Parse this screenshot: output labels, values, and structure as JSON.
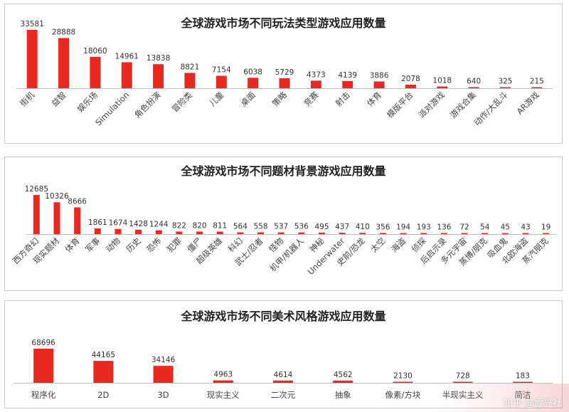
{
  "watermark": "知乎 @霞光社",
  "chart_data": [
    {
      "type": "bar",
      "title": "全球游戏市场不同玩法类型游戏应用数量",
      "categories": [
        "街机",
        "益智",
        "娱乐场",
        "Simulation",
        "角色扮演",
        "冒险类",
        "儿童",
        "桌面",
        "策略",
        "竞赛",
        "射击",
        "体育",
        "模版平台",
        "派对游戏",
        "游戏合集",
        "动作/大乱斗",
        "AR游戏"
      ],
      "values": [
        33581,
        28888,
        18060,
        14961,
        13838,
        8821,
        7154,
        6038,
        5729,
        4373,
        4139,
        3886,
        2078,
        1018,
        640,
        325,
        215
      ],
      "color": "#e8291f",
      "ylim": [
        0,
        33581
      ]
    },
    {
      "type": "bar",
      "title": "全球游戏市场不同题材背景游戏应用数量",
      "categories": [
        "西方奇幻",
        "现实题材",
        "体育",
        "军事",
        "动物",
        "历史",
        "恐怖",
        "犯罪",
        "僵尸",
        "超级英雄",
        "科幻",
        "武士/忍者",
        "怪物",
        "机甲/机器人",
        "神秘",
        "Underwater",
        "史前/恐龙",
        "太空",
        "海盗",
        "侦探",
        "后启示录",
        "多元宇宙",
        "蒸博/朋克",
        "吸血鬼",
        "北欧海盗",
        "蒸汽朋克"
      ],
      "values": [
        12685,
        10326,
        8666,
        1861,
        1674,
        1428,
        1244,
        822,
        820,
        811,
        564,
        558,
        537,
        536,
        495,
        437,
        410,
        356,
        194,
        193,
        136,
        72,
        54,
        45,
        43,
        19
      ],
      "color": "#e8291f",
      "ylim": [
        0,
        12685
      ]
    },
    {
      "type": "bar",
      "title": "全球游戏市场不同美术风格游戏应用数量",
      "categories": [
        "程序化",
        "2D",
        "3D",
        "现实主义",
        "二次元",
        "抽象",
        "像素/方块",
        "半现实主义",
        "简洁"
      ],
      "values": [
        68696,
        44165,
        34146,
        4963,
        4614,
        4562,
        2130,
        728,
        183
      ],
      "color": "#e8291f",
      "ylim": [
        0,
        68696
      ]
    }
  ]
}
